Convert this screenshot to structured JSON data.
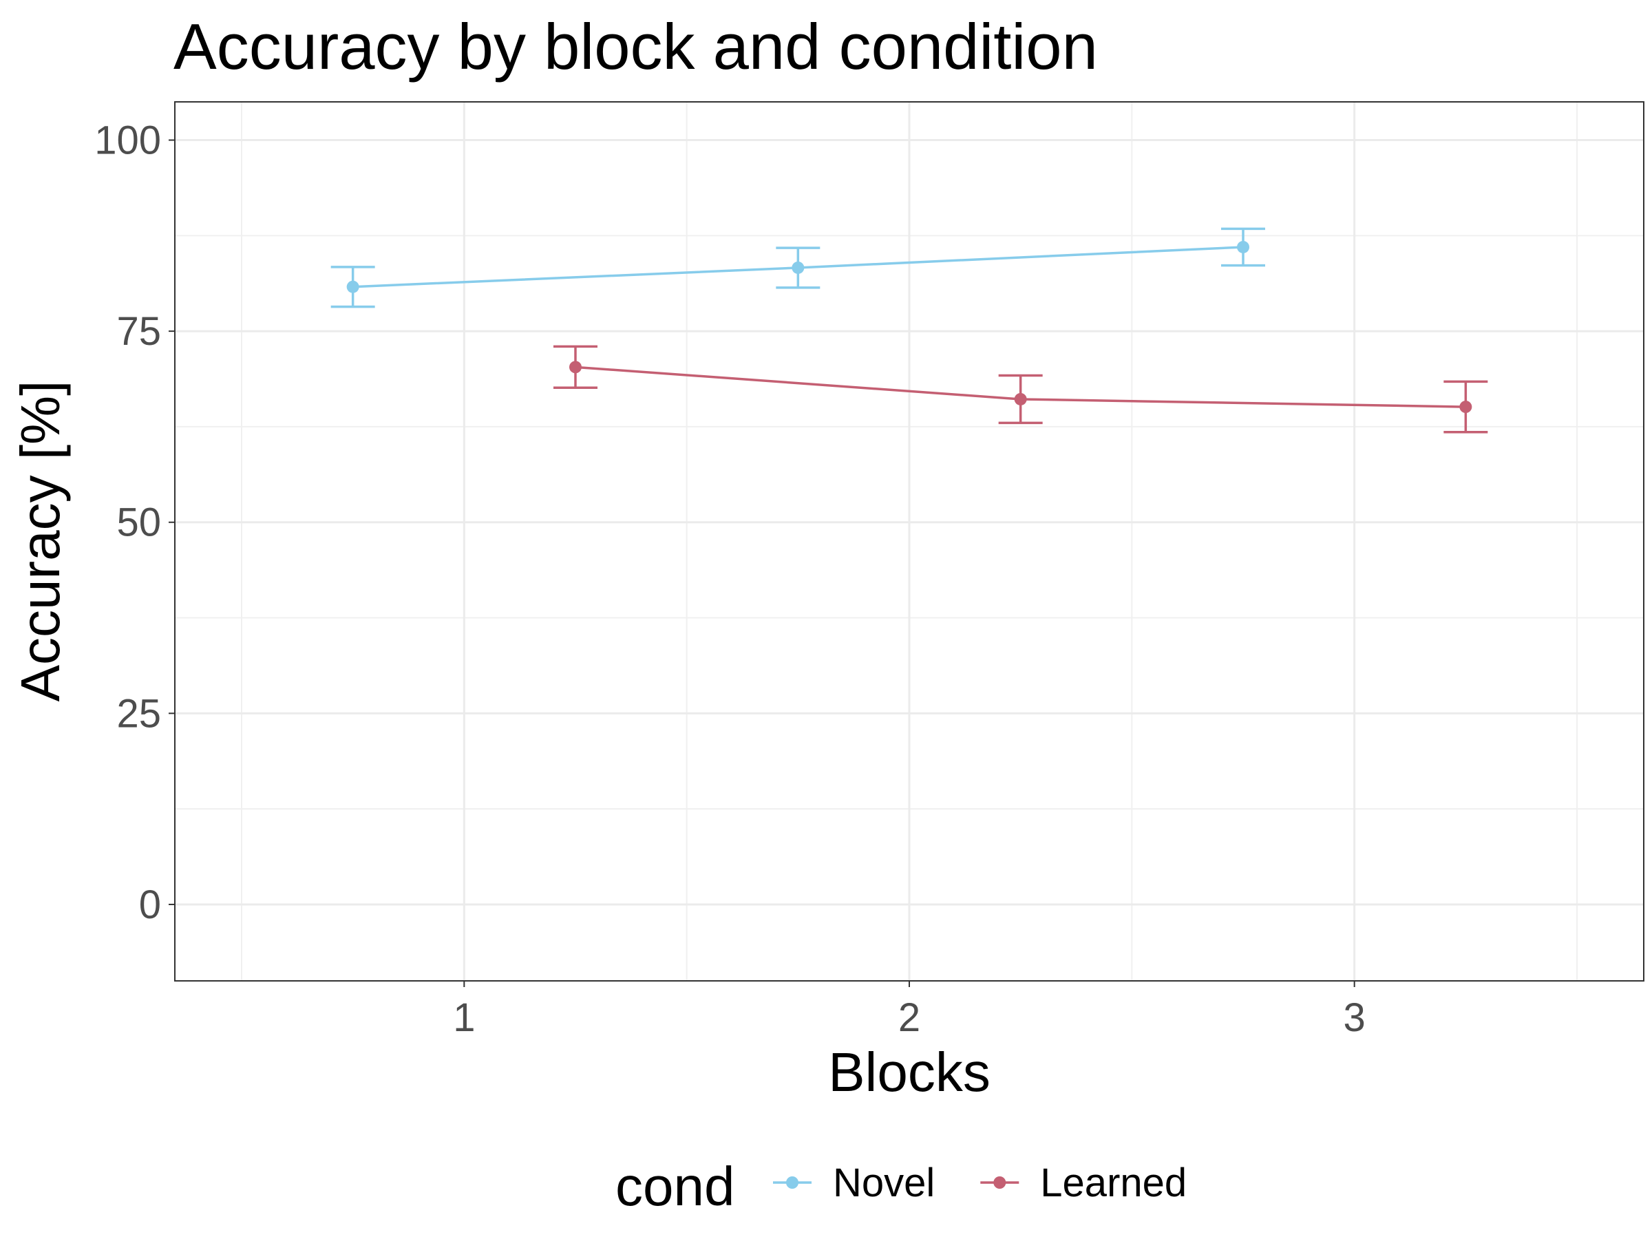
{
  "chart_data": {
    "type": "line",
    "title": "Accuracy by block and condition",
    "xlabel": "Blocks",
    "ylabel": "Accuracy [%]",
    "x": [
      1,
      2,
      3
    ],
    "x_ticks": [
      "1",
      "2",
      "3"
    ],
    "xlim": [
      0.35,
      3.65
    ],
    "ylim": [
      -10,
      105
    ],
    "y_ticks": [
      "0",
      "25",
      "50",
      "75",
      "100"
    ],
    "grid": true,
    "legend_title": "cond",
    "legend_position": "bottom",
    "series": [
      {
        "name": "Novel",
        "color": "#87CCEB",
        "dodge": -0.25,
        "values": [
          80.8,
          83.3,
          86.0
        ],
        "lower": [
          78.2,
          80.7,
          83.6
        ],
        "upper": [
          83.4,
          85.9,
          88.4
        ]
      },
      {
        "name": "Learned",
        "color": "#C45F72",
        "dodge": 0.25,
        "values": [
          70.3,
          66.1,
          65.1
        ],
        "lower": [
          67.6,
          63.0,
          61.8
        ],
        "upper": [
          73.0,
          69.2,
          68.4
        ]
      }
    ]
  }
}
